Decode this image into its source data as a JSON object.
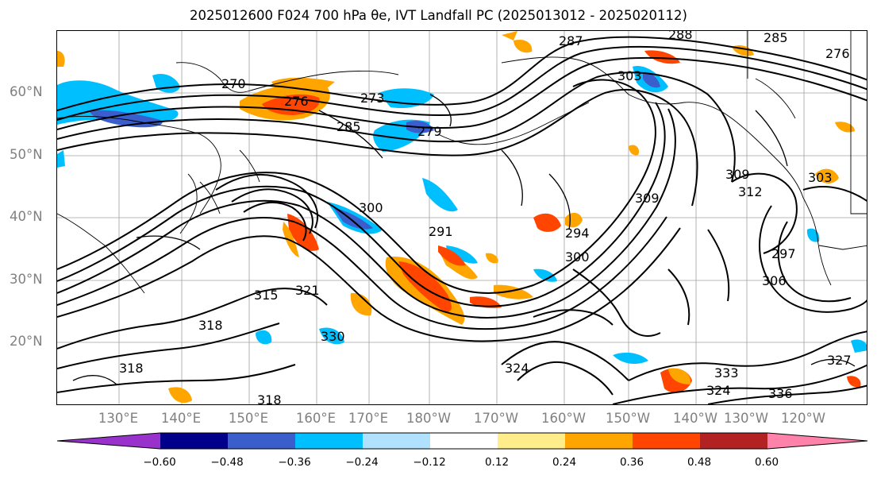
{
  "title": "2025012600 F024 700 hPa θe, IVT Landfall PC (2025013012 - 2025020112)",
  "map": {
    "type": "contour map",
    "projection": "cylindrical",
    "variable": "700 hPa equivalent potential temperature (contours) with IVT landfall principal component (shaded)",
    "lat_labels": [
      "60°N",
      "50°N",
      "40°N",
      "30°N",
      "20°N"
    ],
    "lon_labels": [
      "130°E",
      "140°E",
      "150°E",
      "160°E",
      "170°E",
      "180°W",
      "170°W",
      "160°W",
      "150°W",
      "140°W",
      "130°W",
      "120°W"
    ],
    "gridlines": true,
    "contour_labels": [
      "270",
      "273",
      "276",
      "279",
      "285",
      "287",
      "288",
      "285",
      "276",
      "303",
      "300",
      "309",
      "309",
      "312",
      "300",
      "303",
      "306",
      "297",
      "291",
      "294",
      "315",
      "318",
      "321",
      "318",
      "324",
      "327",
      "330",
      "333",
      "336",
      "318",
      "324"
    ]
  },
  "colorbar": {
    "orientation": "horizontal",
    "extend": "both",
    "tick_labels": [
      "−0.60",
      "−0.48",
      "−0.36",
      "−0.24",
      "−0.12",
      "0.12",
      "0.24",
      "0.36",
      "0.48",
      "0.60"
    ],
    "segments": [
      {
        "color": "#9932CC"
      },
      {
        "color": "#00008B"
      },
      {
        "color": "#3A5FCD"
      },
      {
        "color": "#00BFFF"
      },
      {
        "color": "#B0E2FF"
      },
      {
        "color": "#FFFFFF"
      },
      {
        "color": "#FFEC8B"
      },
      {
        "color": "#FFA500"
      },
      {
        "color": "#FF4500"
      },
      {
        "color": "#B22222"
      },
      {
        "color": "#FF82AB"
      }
    ]
  }
}
